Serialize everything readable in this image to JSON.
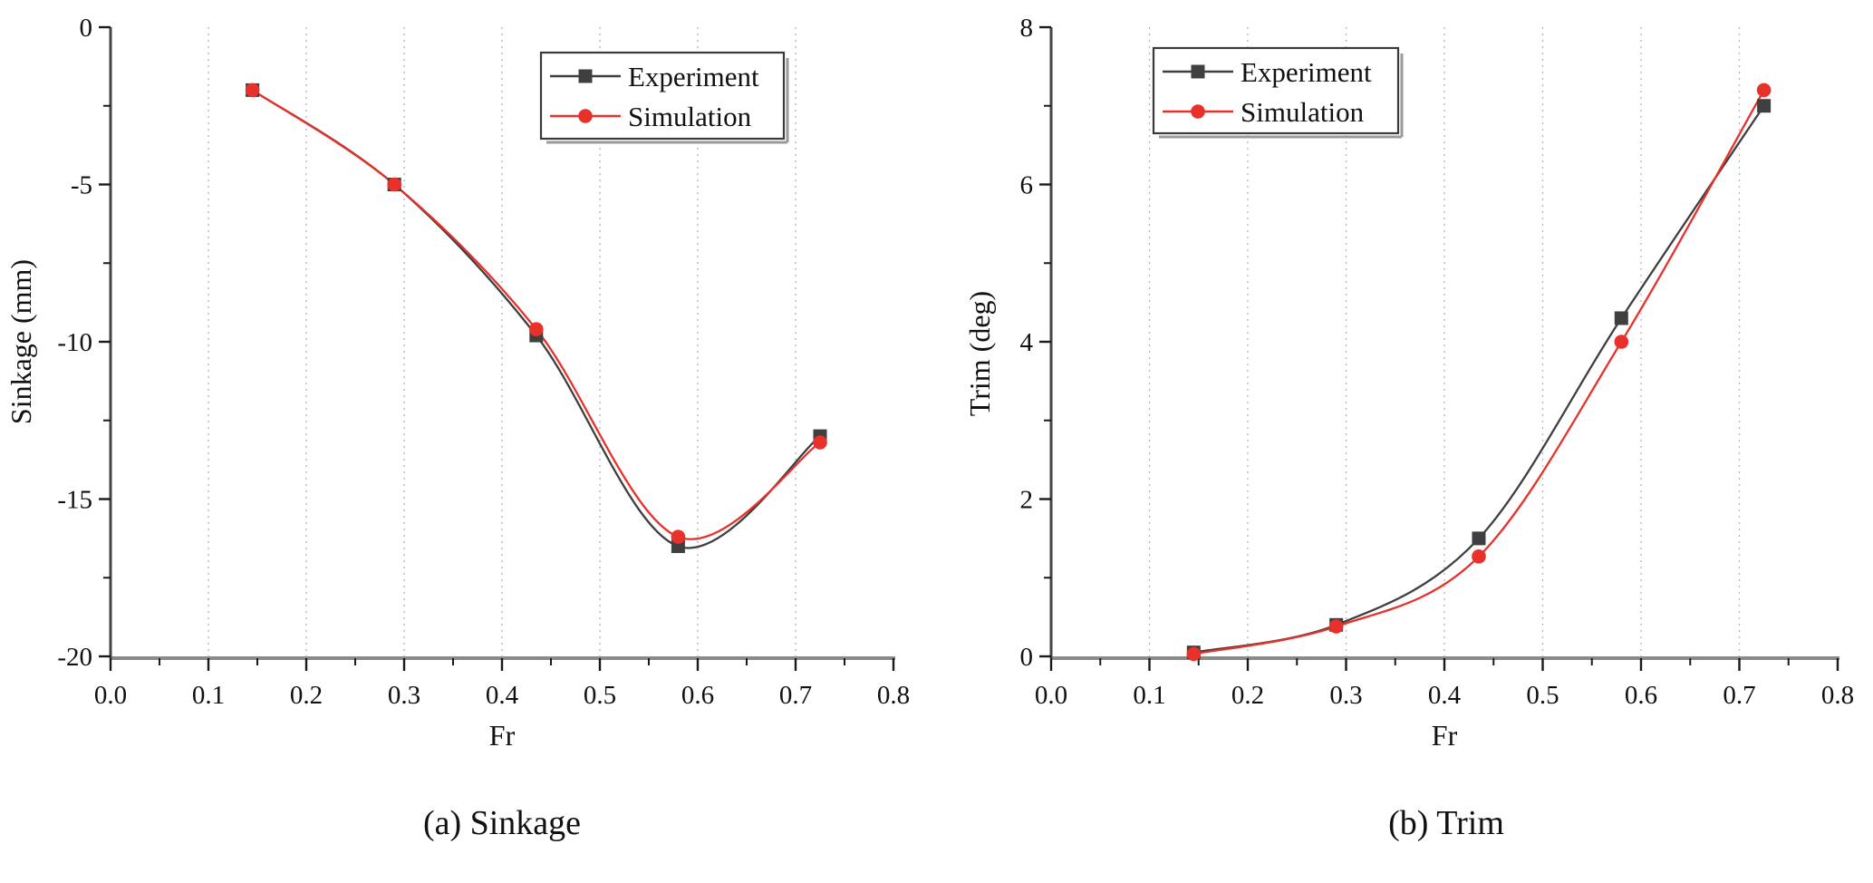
{
  "figure": {
    "description": "Two-panel scientific line chart comparing experiment and simulation versus Froude number",
    "panel_captions": [
      "(a) Sinkage",
      "(b) Trim"
    ]
  },
  "chart_data": [
    {
      "id": "sinkage",
      "type": "line",
      "caption": "(a) Sinkage",
      "xlabel": "Fr",
      "ylabel": "Sinkage (mm)",
      "xlim": [
        0.0,
        0.8
      ],
      "ylim": [
        -20,
        0
      ],
      "x": [
        0.145,
        0.29,
        0.435,
        0.58,
        0.725
      ],
      "series": [
        {
          "name": "Experiment",
          "marker": "square",
          "color": "#3f3f3f",
          "values": [
            -2.0,
            -5.0,
            -9.8,
            -16.5,
            -13.0
          ]
        },
        {
          "name": "Simulation",
          "marker": "circle",
          "color": "#e8312a",
          "values": [
            -2.0,
            -5.0,
            -9.6,
            -16.2,
            -13.2
          ]
        }
      ],
      "xtick_labels": [
        "0.0",
        "0.1",
        "0.2",
        "0.3",
        "0.4",
        "0.5",
        "0.6",
        "0.7",
        "0.8"
      ],
      "xtick_values": [
        0.0,
        0.1,
        0.2,
        0.3,
        0.4,
        0.5,
        0.6,
        0.7,
        0.8
      ],
      "ytick_labels": [
        "0",
        "-5",
        "-10",
        "-15",
        "-20"
      ],
      "ytick_values": [
        0,
        -5,
        -10,
        -15,
        -20
      ],
      "minor_x_step": 0.05,
      "minor_y_step": 2.5,
      "grid_x": [
        0.1,
        0.2,
        0.3,
        0.4,
        0.5,
        0.6,
        0.7
      ],
      "grid_style": "vertical-dashed",
      "legend": {
        "position": "top-center",
        "entries": [
          "Experiment",
          "Simulation"
        ]
      }
    },
    {
      "id": "trim",
      "type": "line",
      "caption": "(b) Trim",
      "xlabel": "Fr",
      "ylabel": "Trim (deg)",
      "xlim": [
        0.0,
        0.8
      ],
      "ylim": [
        0,
        8
      ],
      "x": [
        0.145,
        0.29,
        0.435,
        0.58,
        0.725
      ],
      "series": [
        {
          "name": "Experiment",
          "marker": "square",
          "color": "#3f3f3f",
          "values": [
            0.05,
            0.4,
            1.5,
            4.3,
            7.0
          ]
        },
        {
          "name": "Simulation",
          "marker": "circle",
          "color": "#e8312a",
          "values": [
            0.03,
            0.38,
            1.27,
            4.0,
            7.2
          ]
        }
      ],
      "xtick_labels": [
        "0.0",
        "0.1",
        "0.2",
        "0.3",
        "0.4",
        "0.5",
        "0.6",
        "0.7",
        "0.8"
      ],
      "xtick_values": [
        0.0,
        0.1,
        0.2,
        0.3,
        0.4,
        0.5,
        0.6,
        0.7,
        0.8
      ],
      "ytick_labels": [
        "0",
        "2",
        "4",
        "6",
        "8"
      ],
      "ytick_values": [
        0,
        2,
        4,
        6,
        8
      ],
      "minor_x_step": 0.05,
      "minor_y_step": 1,
      "grid_x": [
        0.1,
        0.2,
        0.3,
        0.4,
        0.5,
        0.6,
        0.7
      ],
      "grid_style": "vertical-dashed",
      "legend": {
        "position": "top-left",
        "entries": [
          "Experiment",
          "Simulation"
        ]
      }
    }
  ],
  "colors": {
    "experiment": "#3f3f3f",
    "simulation": "#e8312a",
    "gridline": "#b5b5b5",
    "x_axis": "#8a8a8a",
    "y_axis": "#454545",
    "tick": "#1a1a1a",
    "text": "#111111",
    "legend_border": "#3a3a3a",
    "legend_shadow": "#9a9a9a"
  }
}
